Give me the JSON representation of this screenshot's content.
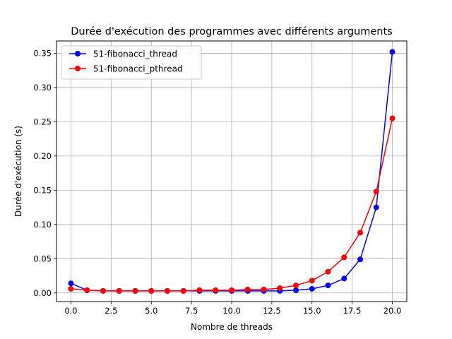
{
  "chart_data": {
    "type": "line",
    "title": "Durée d'exécution des programmes avec différents arguments",
    "xlabel": "Nombre de threads",
    "ylabel": "Durée d'exécution (s)",
    "xlim": [
      -0.9,
      20.9
    ],
    "ylim": [
      -0.0126,
      0.368
    ],
    "xticks": [
      0.0,
      2.5,
      5.0,
      7.5,
      10.0,
      12.5,
      15.0,
      17.5,
      20.0
    ],
    "xtick_labels": [
      "0.0",
      "2.5",
      "5.0",
      "7.5",
      "10.0",
      "12.5",
      "15.0",
      "17.5",
      "20.0"
    ],
    "yticks": [
      0.0,
      0.05,
      0.1,
      0.15,
      0.2,
      0.25,
      0.3,
      0.35
    ],
    "ytick_labels": [
      "0.00",
      "0.05",
      "0.10",
      "0.15",
      "0.20",
      "0.25",
      "0.30",
      "0.35"
    ],
    "grid": true,
    "legend_position": "top-left",
    "x": [
      0,
      1,
      2,
      3,
      4,
      5,
      6,
      7,
      8,
      9,
      10,
      11,
      12,
      13,
      14,
      15,
      16,
      17,
      18,
      19,
      20
    ],
    "series": [
      {
        "name": "51-fibonacci_thread",
        "color": "#0000ff",
        "values": [
          0.014,
          0.004,
          0.003,
          0.003,
          0.003,
          0.003,
          0.003,
          0.003,
          0.003,
          0.003,
          0.003,
          0.003,
          0.003,
          0.003,
          0.004,
          0.006,
          0.011,
          0.021,
          0.049,
          0.125,
          0.352
        ]
      },
      {
        "name": "51-fibonacci_pthread",
        "color": "#ff0000",
        "values": [
          0.006,
          0.004,
          0.003,
          0.003,
          0.003,
          0.003,
          0.003,
          0.003,
          0.004,
          0.004,
          0.004,
          0.005,
          0.005,
          0.007,
          0.011,
          0.018,
          0.031,
          0.052,
          0.088,
          0.148,
          0.255
        ]
      }
    ]
  }
}
